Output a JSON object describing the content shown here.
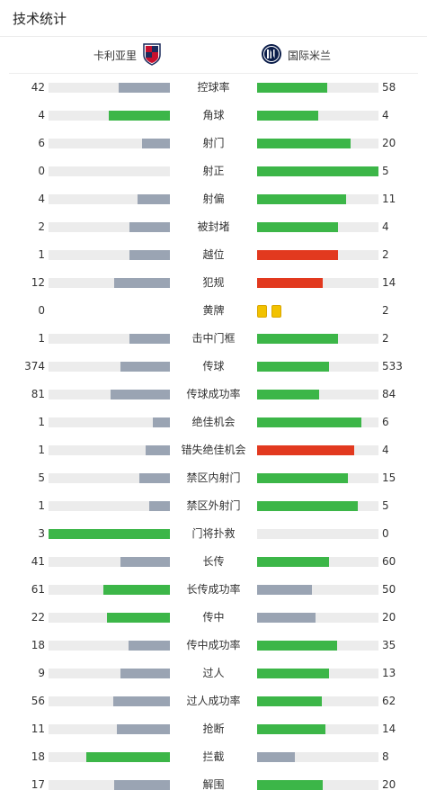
{
  "title": "技术统计",
  "teams": {
    "home": "卡利亚里",
    "away": "国际米兰"
  },
  "colors": {
    "green": "#3cb648",
    "grey": "#9aa4b3",
    "red": "#e2391f",
    "track": "#ececec",
    "yellow": "#f2c200"
  },
  "stats": [
    {
      "label": "控球率",
      "home": "42",
      "away": "58",
      "hf": 0.42,
      "af": 0.58,
      "hc": "grey",
      "ac": "green"
    },
    {
      "label": "角球",
      "home": "4",
      "away": "4",
      "hf": 0.5,
      "af": 0.5,
      "hc": "green",
      "ac": "green"
    },
    {
      "label": "射门",
      "home": "6",
      "away": "20",
      "hf": 0.23,
      "af": 0.77,
      "hc": "grey",
      "ac": "green"
    },
    {
      "label": "射正",
      "home": "0",
      "away": "5",
      "hf": 0.0,
      "af": 1.0,
      "hc": "grey",
      "ac": "green"
    },
    {
      "label": "射偏",
      "home": "4",
      "away": "11",
      "hf": 0.27,
      "af": 0.73,
      "hc": "grey",
      "ac": "green"
    },
    {
      "label": "被封堵",
      "home": "2",
      "away": "4",
      "hf": 0.33,
      "af": 0.67,
      "hc": "grey",
      "ac": "green"
    },
    {
      "label": "越位",
      "home": "1",
      "away": "2",
      "hf": 0.33,
      "af": 0.67,
      "hc": "grey",
      "ac": "red"
    },
    {
      "label": "犯规",
      "home": "12",
      "away": "14",
      "hf": 0.46,
      "af": 0.54,
      "hc": "grey",
      "ac": "red"
    },
    {
      "label": "黄牌",
      "home": "0",
      "away": "2",
      "cards": 2
    },
    {
      "label": "击中门框",
      "home": "1",
      "away": "2",
      "hf": 0.33,
      "af": 0.67,
      "hc": "grey",
      "ac": "green"
    },
    {
      "label": "传球",
      "home": "374",
      "away": "533",
      "hf": 0.41,
      "af": 0.59,
      "hc": "grey",
      "ac": "green"
    },
    {
      "label": "传球成功率",
      "home": "81",
      "away": "84",
      "hf": 0.49,
      "af": 0.51,
      "hc": "grey",
      "ac": "green"
    },
    {
      "label": "绝佳机会",
      "home": "1",
      "away": "6",
      "hf": 0.14,
      "af": 0.86,
      "hc": "grey",
      "ac": "green"
    },
    {
      "label": "错失绝佳机会",
      "home": "1",
      "away": "4",
      "hf": 0.2,
      "af": 0.8,
      "hc": "grey",
      "ac": "red"
    },
    {
      "label": "禁区内射门",
      "home": "5",
      "away": "15",
      "hf": 0.25,
      "af": 0.75,
      "hc": "grey",
      "ac": "green"
    },
    {
      "label": "禁区外射门",
      "home": "1",
      "away": "5",
      "hf": 0.17,
      "af": 0.83,
      "hc": "grey",
      "ac": "green"
    },
    {
      "label": "门将扑救",
      "home": "3",
      "away": "0",
      "hf": 1.0,
      "af": 0.0,
      "hc": "green",
      "ac": "grey"
    },
    {
      "label": "长传",
      "home": "41",
      "away": "60",
      "hf": 0.41,
      "af": 0.59,
      "hc": "grey",
      "ac": "green"
    },
    {
      "label": "长传成功率",
      "home": "61",
      "away": "50",
      "hf": 0.55,
      "af": 0.45,
      "hc": "green",
      "ac": "grey"
    },
    {
      "label": "传中",
      "home": "22",
      "away": "20",
      "hf": 0.52,
      "af": 0.48,
      "hc": "green",
      "ac": "grey"
    },
    {
      "label": "传中成功率",
      "home": "18",
      "away": "35",
      "hf": 0.34,
      "af": 0.66,
      "hc": "grey",
      "ac": "green"
    },
    {
      "label": "过人",
      "home": "9",
      "away": "13",
      "hf": 0.41,
      "af": 0.59,
      "hc": "grey",
      "ac": "green"
    },
    {
      "label": "过人成功率",
      "home": "56",
      "away": "62",
      "hf": 0.47,
      "af": 0.53,
      "hc": "grey",
      "ac": "green"
    },
    {
      "label": "抢断",
      "home": "11",
      "away": "14",
      "hf": 0.44,
      "af": 0.56,
      "hc": "grey",
      "ac": "green"
    },
    {
      "label": "拦截",
      "home": "18",
      "away": "8",
      "hf": 0.69,
      "af": 0.31,
      "hc": "green",
      "ac": "grey"
    },
    {
      "label": "解围",
      "home": "17",
      "away": "20",
      "hf": 0.46,
      "af": 0.54,
      "hc": "grey",
      "ac": "green"
    }
  ]
}
